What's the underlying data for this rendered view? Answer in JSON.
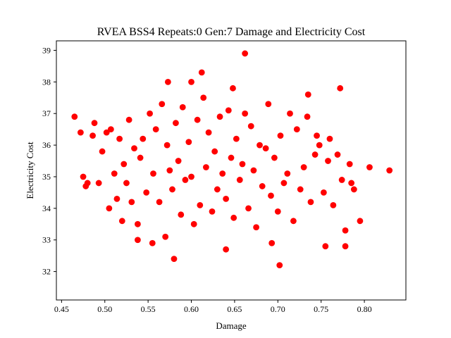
{
  "chart_data": {
    "type": "scatter",
    "title": "RVEA BSS4 Repeats:0 Gen:7 Damage and Electricity Cost",
    "xlabel": "Damage",
    "ylabel": "Electricity Cost",
    "xlim": [
      0.444,
      0.848
    ],
    "ylim": [
      31.1,
      39.3
    ],
    "xticks": [
      "0.45",
      "0.50",
      "0.55",
      "0.60",
      "0.65",
      "0.70",
      "0.75",
      "0.80"
    ],
    "yticks": [
      "32",
      "33",
      "34",
      "35",
      "36",
      "37",
      "38",
      "39"
    ],
    "grid": false,
    "marker_color": "#ff0000",
    "series": [
      {
        "x": [
          0.465,
          0.472,
          0.478,
          0.475,
          0.48,
          0.486,
          0.488,
          0.493,
          0.497,
          0.502,
          0.505,
          0.507,
          0.511,
          0.514,
          0.517,
          0.522,
          0.525,
          0.528,
          0.531,
          0.534,
          0.538,
          0.541,
          0.544,
          0.548,
          0.552,
          0.556,
          0.559,
          0.563,
          0.566,
          0.57,
          0.572,
          0.575,
          0.578,
          0.582,
          0.585,
          0.588,
          0.59,
          0.593,
          0.597,
          0.6,
          0.603,
          0.607,
          0.61,
          0.614,
          0.617,
          0.62,
          0.624,
          0.627,
          0.63,
          0.633,
          0.636,
          0.64,
          0.643,
          0.646,
          0.649,
          0.652,
          0.656,
          0.659,
          0.662,
          0.666,
          0.669,
          0.672,
          0.675,
          0.679,
          0.682,
          0.686,
          0.689,
          0.692,
          0.696,
          0.7,
          0.703,
          0.707,
          0.711,
          0.714,
          0.718,
          0.722,
          0.726,
          0.73,
          0.734,
          0.738,
          0.743,
          0.748,
          0.753,
          0.758,
          0.764,
          0.769,
          0.774,
          0.778,
          0.783,
          0.788,
          0.795,
          0.806,
          0.829,
          0.573,
          0.6,
          0.612,
          0.648,
          0.662,
          0.702,
          0.772,
          0.755,
          0.778,
          0.555,
          0.64,
          0.693,
          0.538,
          0.52,
          0.735,
          0.745,
          0.76,
          0.785,
          0.58
        ],
        "y": [
          36.9,
          36.4,
          34.7,
          35.0,
          34.8,
          36.3,
          36.7,
          34.8,
          35.8,
          36.4,
          34.0,
          36.5,
          35.1,
          34.3,
          36.2,
          35.4,
          34.8,
          36.8,
          34.2,
          35.9,
          33.5,
          35.6,
          36.2,
          34.5,
          37.0,
          35.1,
          36.5,
          34.2,
          37.3,
          33.1,
          36.0,
          35.2,
          34.6,
          36.7,
          35.5,
          33.8,
          37.2,
          34.9,
          36.1,
          35.0,
          33.5,
          36.8,
          34.1,
          37.5,
          35.3,
          36.4,
          33.9,
          35.8,
          34.6,
          36.9,
          35.1,
          34.3,
          37.1,
          35.6,
          33.7,
          36.2,
          34.9,
          35.4,
          37.0,
          34.0,
          36.6,
          35.2,
          33.4,
          36.0,
          34.7,
          35.9,
          37.3,
          34.4,
          35.6,
          33.9,
          36.3,
          34.8,
          35.1,
          37.0,
          33.6,
          36.5,
          34.6,
          35.3,
          36.9,
          34.2,
          35.7,
          36.0,
          34.5,
          35.5,
          34.1,
          35.7,
          34.9,
          33.3,
          35.4,
          34.6,
          33.6,
          35.3,
          35.2,
          38.0,
          38.0,
          38.3,
          37.8,
          38.9,
          32.2,
          37.8,
          32.8,
          32.8,
          32.9,
          32.7,
          32.9,
          33.0,
          33.6,
          37.6,
          36.3,
          36.2,
          34.8,
          32.4
        ]
      }
    ]
  }
}
